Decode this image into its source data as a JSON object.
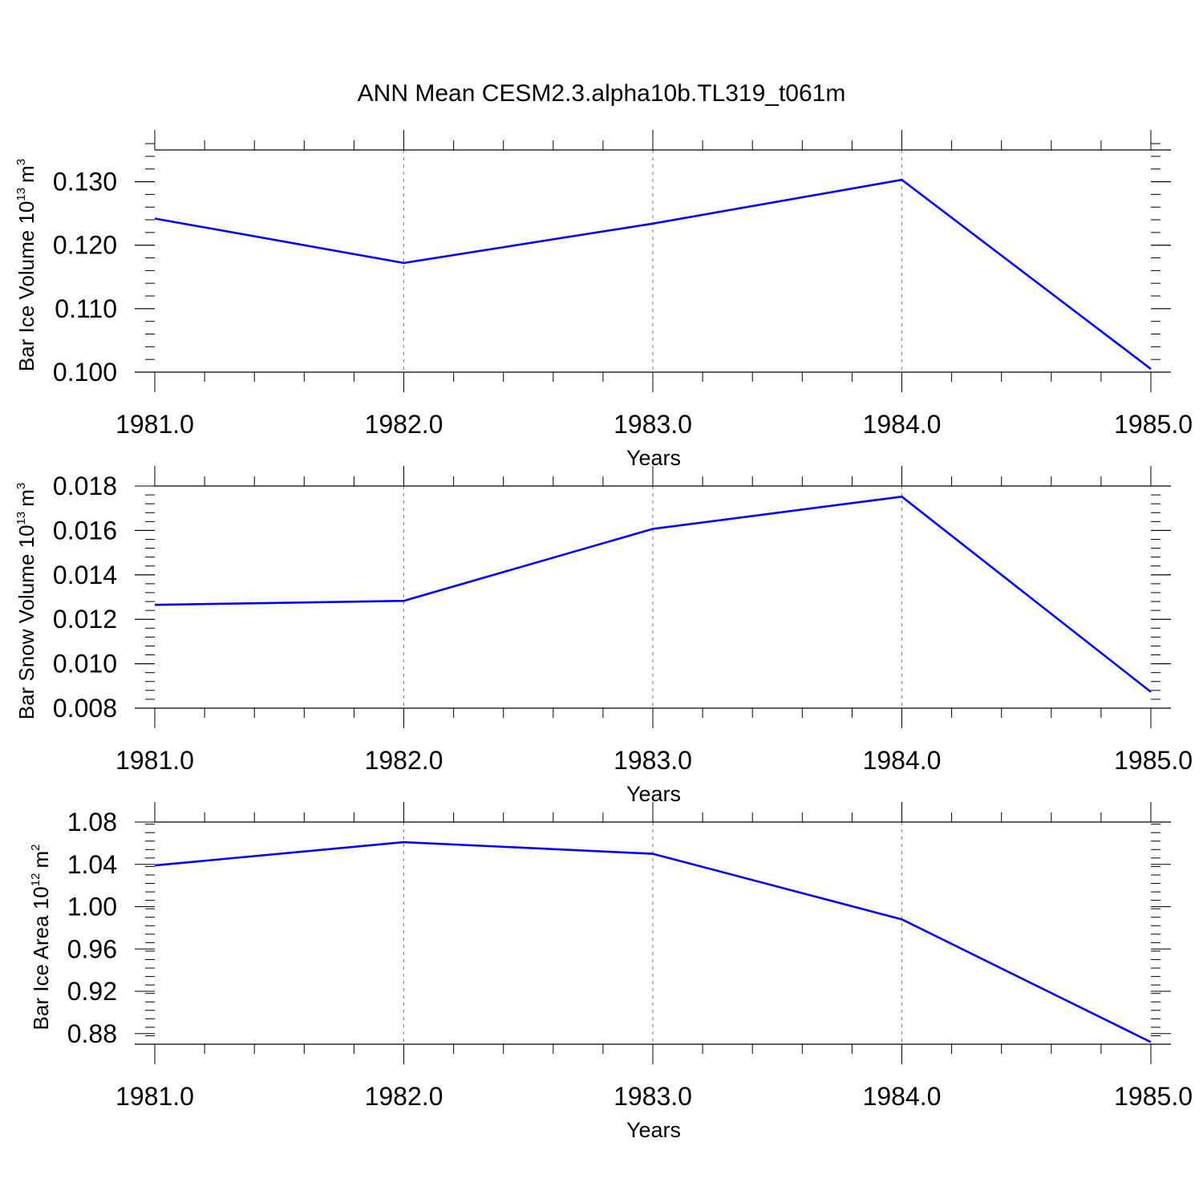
{
  "figure": {
    "title": "ANN Mean CESM2.3.alpha10b.TL319_t061m"
  },
  "chart_data": [
    {
      "type": "line",
      "title": "",
      "xlabel": "Years",
      "ylabel": "Bar Ice Volume 10",
      "ylabel_exponent": "13",
      "ylabel_unit": "m",
      "ylabel_unit_exponent": "3",
      "x": [
        1981.0,
        1982.0,
        1983.0,
        1984.0,
        1985.0
      ],
      "xlim": [
        1981.0,
        1985.0
      ],
      "xticks": [
        "1981.0",
        "1982.0",
        "1983.0",
        "1984.0",
        "1985.0"
      ],
      "ylim": [
        0.1,
        0.135
      ],
      "yticks": [
        "0.100",
        "0.110",
        "0.120",
        "0.130"
      ],
      "ytick_values": [
        0.1,
        0.11,
        0.12,
        0.13
      ],
      "yminor_step": 0.002,
      "grid": "vertical dashed at major x ticks",
      "series": [
        {
          "color": "#0000ff",
          "values": [
            0.1242,
            0.1172,
            0.1234,
            0.1303,
            0.1005
          ]
        }
      ]
    },
    {
      "type": "line",
      "title": "",
      "xlabel": "Years",
      "ylabel": "Bar Snow Volume 10",
      "ylabel_exponent": "13",
      "ylabel_unit": "m",
      "ylabel_unit_exponent": "3",
      "x": [
        1981.0,
        1982.0,
        1983.0,
        1984.0,
        1985.0
      ],
      "xlim": [
        1981.0,
        1985.0
      ],
      "xticks": [
        "1981.0",
        "1982.0",
        "1983.0",
        "1984.0",
        "1985.0"
      ],
      "ylim": [
        0.008,
        0.018
      ],
      "yticks": [
        "0.008",
        "0.010",
        "0.012",
        "0.014",
        "0.016",
        "0.018"
      ],
      "ytick_values": [
        0.008,
        0.01,
        0.012,
        0.014,
        0.016,
        0.018
      ],
      "yminor_step": 0.0004,
      "grid": "vertical dashed at major x ticks",
      "series": [
        {
          "color": "#0000ff",
          "values": [
            0.01265,
            0.01283,
            0.01607,
            0.01752,
            0.00873
          ]
        }
      ]
    },
    {
      "type": "line",
      "title": "",
      "xlabel": "Years",
      "ylabel": "Bar Ice Area 10",
      "ylabel_exponent": "12",
      "ylabel_unit": "m",
      "ylabel_unit_exponent": "2",
      "x": [
        1981.0,
        1982.0,
        1983.0,
        1984.0,
        1985.0
      ],
      "xlim": [
        1981.0,
        1985.0
      ],
      "xticks": [
        "1981.0",
        "1982.0",
        "1983.0",
        "1984.0",
        "1985.0"
      ],
      "ylim": [
        0.87,
        1.08
      ],
      "yticks": [
        "0.88",
        "0.92",
        "0.96",
        "1.00",
        "1.04",
        "1.08"
      ],
      "ytick_values": [
        0.88,
        0.92,
        0.96,
        1.0,
        1.04,
        1.08
      ],
      "yminor_step": 0.008,
      "grid": "vertical dashed at major x ticks",
      "series": [
        {
          "color": "#0000ff",
          "values": [
            1.039,
            1.061,
            1.05,
            0.988,
            0.872
          ]
        }
      ]
    }
  ]
}
